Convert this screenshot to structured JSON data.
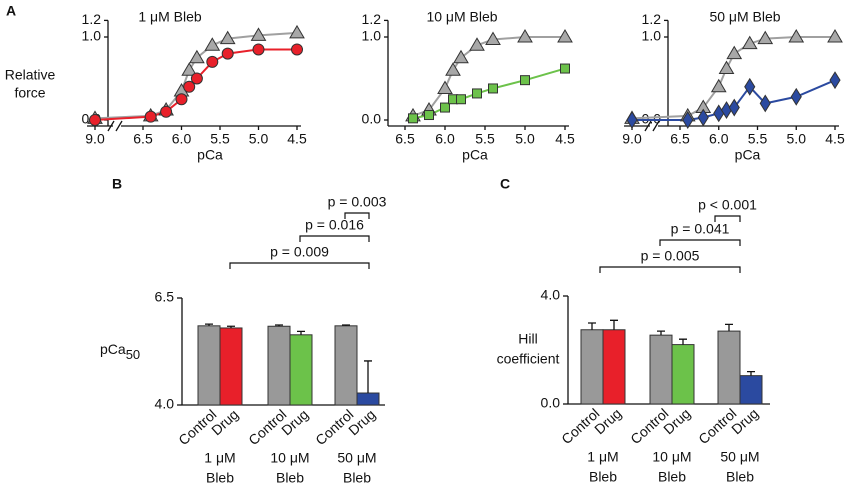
{
  "charts": [
    {
      "type": "line",
      "panel_label": "A",
      "title": "1 μM Bleb",
      "y_label": [
        "Relative",
        "force"
      ],
      "x_label": "pCa",
      "x": [
        9.0,
        6.4,
        6.2,
        6.0,
        5.9,
        5.8,
        5.6,
        5.4,
        5.0,
        4.5
      ],
      "xlim": [
        9.0,
        4.5
      ],
      "xticks": [
        {
          "value": 9,
          "label": "9.0"
        },
        6.5,
        {
          "value": 6,
          "label": "6.0"
        },
        5.5,
        {
          "value": 5,
          "label": "5.0"
        },
        4.5
      ],
      "ylim": [
        0,
        1.2
      ],
      "yticks": [
        {
          "value": 0,
          "label": "0.0"
        },
        {
          "value": 1,
          "label": "1.0"
        },
        1.2
      ],
      "series": [
        {
          "name": "Control",
          "color": "#a8a8a8",
          "line_color": "#a0a0a0",
          "marker": "triangle",
          "values": [
            0.02,
            0.05,
            0.12,
            0.35,
            0.6,
            0.75,
            0.9,
            0.98,
            1.02,
            1.05
          ]
        },
        {
          "name": "Drug",
          "color": "#e8202a",
          "line_color": "#e8202a",
          "marker": "circle",
          "values": [
            0.0,
            0.04,
            0.1,
            0.25,
            0.4,
            0.5,
            0.7,
            0.8,
            0.85,
            0.85
          ]
        }
      ]
    },
    {
      "type": "line",
      "title": "10 μM Bleb",
      "x_label": "pCa",
      "x": [
        6.4,
        6.2,
        6.0,
        5.9,
        5.8,
        5.6,
        5.4,
        5.0,
        4.5
      ],
      "xlim": [
        6.5,
        4.5
      ],
      "xticks": [
        6.5,
        {
          "value": 6,
          "label": "6.0"
        },
        5.5,
        {
          "value": 5,
          "label": "5.0"
        },
        4.5
      ],
      "ylim": [
        0,
        1.2
      ],
      "yticks": [
        {
          "value": 0,
          "label": "0.0"
        },
        {
          "value": 1,
          "label": "1.0"
        },
        1.2
      ],
      "series": [
        {
          "name": "Control",
          "color": "#a8a8a8",
          "line_color": "#a0a0a0",
          "marker": "triangle",
          "values": [
            0.05,
            0.12,
            0.38,
            0.6,
            0.75,
            0.9,
            0.97,
            1.0,
            1.0
          ]
        },
        {
          "name": "Drug",
          "color": "#6cc24a",
          "line_color": "#6cc24a",
          "marker": "square",
          "values": [
            0.02,
            0.06,
            0.15,
            0.25,
            0.25,
            0.32,
            0.38,
            0.48,
            0.62
          ]
        }
      ]
    },
    {
      "type": "line",
      "title": "50 μM Bleb",
      "x_label": "pCa",
      "x": [
        9.0,
        6.4,
        6.2,
        6.0,
        5.9,
        5.8,
        5.6,
        5.4,
        5.0,
        4.5
      ],
      "xlim": [
        9.0,
        4.5
      ],
      "xticks": [
        {
          "value": 9,
          "label": "9.0"
        },
        6.5,
        {
          "value": 6,
          "label": "6.0"
        },
        5.5,
        {
          "value": 5,
          "label": "5.0"
        },
        4.5
      ],
      "ylim": [
        0,
        1.2
      ],
      "yticks": [
        {
          "value": 0,
          "label": "0.0"
        },
        {
          "value": 1,
          "label": "1.0"
        },
        1.2
      ],
      "series": [
        {
          "name": "Control",
          "color": "#a8a8a8",
          "line_color": "#a0a0a0",
          "marker": "triangle",
          "values": [
            0.02,
            0.05,
            0.15,
            0.4,
            0.62,
            0.8,
            0.92,
            0.98,
            1.0,
            1.0
          ]
        },
        {
          "name": "Drug",
          "color": "#2b4aa0",
          "line_color": "#2b4aa0",
          "marker": "diamond",
          "values": [
            0.0,
            0.0,
            0.03,
            0.08,
            0.12,
            0.15,
            0.4,
            0.2,
            0.28,
            0.48
          ]
        }
      ]
    },
    {
      "type": "bar",
      "panel_label": "B",
      "y_label": "pCa",
      "y_label_subscript": "50",
      "categories": [
        [
          "1 μM",
          "Bleb"
        ],
        [
          "10 μM",
          "Bleb"
        ],
        [
          "50 μM",
          "Bleb"
        ]
      ],
      "ylim": [
        4.0,
        6.5
      ],
      "yticks": [
        {
          "value": 4,
          "label": "4.0"
        },
        6.5
      ],
      "series": [
        {
          "name": "Control",
          "colors": [
            "#999999",
            "#999999",
            "#999999"
          ],
          "values": [
            5.85,
            5.84,
            5.85
          ],
          "errors": [
            0.04,
            0.03,
            0.02
          ]
        },
        {
          "name": "Drug",
          "colors": [
            "#e8202a",
            "#6cc24a",
            "#2b4aa0"
          ],
          "values": [
            5.8,
            5.64,
            4.28
          ],
          "errors": [
            0.04,
            0.08,
            0.75
          ]
        }
      ],
      "annotations": [
        "p = 0.003",
        "p = 0.016",
        "p = 0.009"
      ]
    },
    {
      "type": "bar",
      "panel_label": "C",
      "y_label": [
        "Hill",
        "coefficient"
      ],
      "categories": [
        [
          "1 μM",
          "Bleb"
        ],
        [
          "10 μM",
          "Bleb"
        ],
        [
          "50 μM",
          "Bleb"
        ]
      ],
      "ylim": [
        0,
        4.0
      ],
      "yticks": [
        {
          "value": 0,
          "label": "0.0"
        },
        {
          "value": 4,
          "label": "4.0"
        }
      ],
      "series": [
        {
          "name": "Control",
          "colors": [
            "#999999",
            "#999999",
            "#999999"
          ],
          "values": [
            2.75,
            2.55,
            2.7
          ],
          "errors": [
            0.25,
            0.15,
            0.25
          ]
        },
        {
          "name": "Drug",
          "colors": [
            "#e8202a",
            "#6cc24a",
            "#2b4aa0"
          ],
          "values": [
            2.75,
            2.2,
            1.05
          ],
          "errors": [
            0.35,
            0.2,
            0.15
          ]
        }
      ],
      "annotations": [
        "p < 0.001",
        "p = 0.041",
        "p = 0.005"
      ]
    }
  ]
}
